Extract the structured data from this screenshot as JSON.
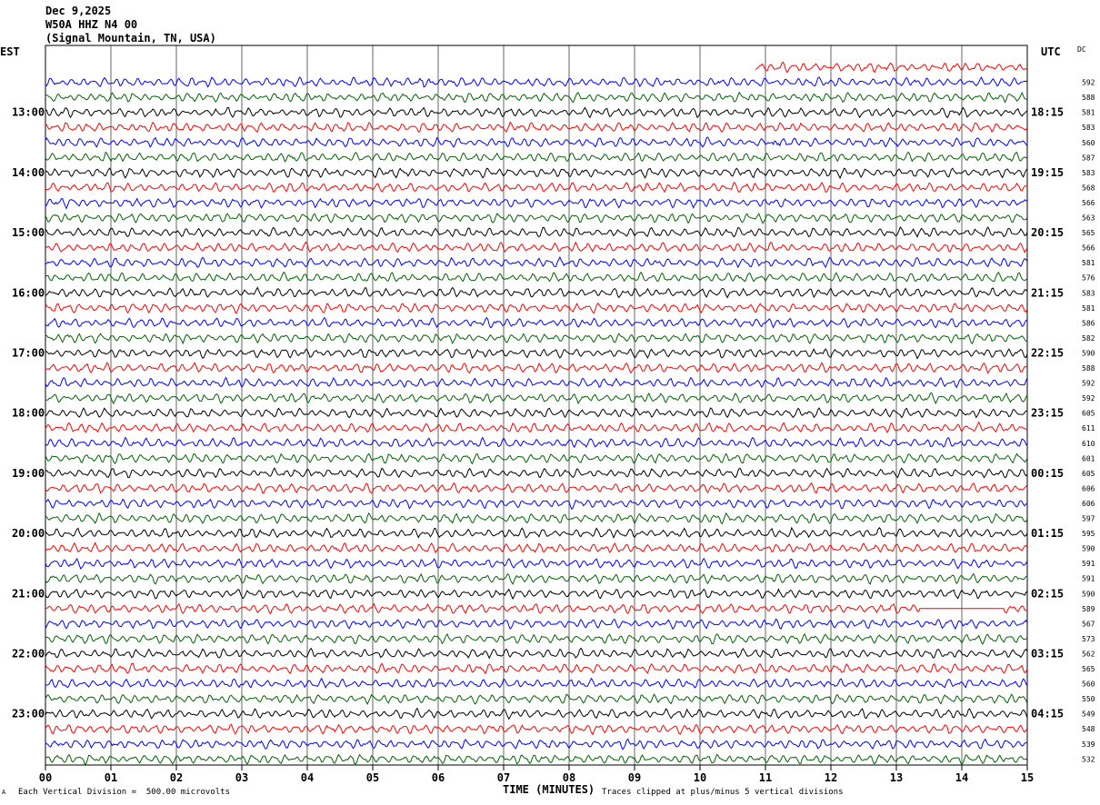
{
  "header": {
    "date": "Dec 9,2025",
    "station": "W50A HHZ N4 00",
    "location": "(Signal Mountain, TN, USA)"
  },
  "left_tz": "EST",
  "right_tz": "UTC",
  "dc_label": "DC",
  "footer": {
    "corner_mark": "A",
    "scale": "Each Vertical Division =  500.00 microvolts",
    "clip": "Traces clipped at plus/minus 5 vertical divisions"
  },
  "chart_data": {
    "type": "line",
    "title": "",
    "xlabel": "TIME (MINUTES)",
    "xlim": [
      0,
      15
    ],
    "x_ticks": [
      "00",
      "01",
      "02",
      "03",
      "04",
      "05",
      "06",
      "07",
      "08",
      "09",
      "10",
      "11",
      "12",
      "13",
      "14",
      "15"
    ],
    "trace_colors": [
      "#ff0000",
      "#0000ff",
      "#006400",
      "#000000"
    ],
    "left_hour_labels": [
      {
        "label": "13:00",
        "row": 3
      },
      {
        "label": "14:00",
        "row": 7
      },
      {
        "label": "15:00",
        "row": 11
      },
      {
        "label": "16:00",
        "row": 15
      },
      {
        "label": "17:00",
        "row": 19
      },
      {
        "label": "18:00",
        "row": 23
      },
      {
        "label": "19:00",
        "row": 27
      },
      {
        "label": "20:00",
        "row": 31
      },
      {
        "label": "21:00",
        "row": 35
      },
      {
        "label": "22:00",
        "row": 39
      },
      {
        "label": "23:00",
        "row": 43
      }
    ],
    "right_hour_labels": [
      {
        "label": "18:15",
        "row": 3
      },
      {
        "label": "19:15",
        "row": 7
      },
      {
        "label": "20:15",
        "row": 11
      },
      {
        "label": "21:15",
        "row": 15
      },
      {
        "label": "22:15",
        "row": 19
      },
      {
        "label": "23:15",
        "row": 23
      },
      {
        "label": "00:15",
        "row": 27
      },
      {
        "label": "01:15",
        "row": 31
      },
      {
        "label": "02:15",
        "row": 35
      },
      {
        "label": "03:15",
        "row": 39
      },
      {
        "label": "04:15",
        "row": 43
      }
    ],
    "dc_offsets": [
      "",
      "592",
      "588",
      "581",
      "583",
      "560",
      "587",
      "583",
      "568",
      "566",
      "563",
      "565",
      "566",
      "581",
      "576",
      "583",
      "581",
      "586",
      "582",
      "590",
      "588",
      "592",
      "592",
      "605",
      "611",
      "610",
      "601",
      "605",
      "606",
      "606",
      "597",
      "595",
      "590",
      "591",
      "591",
      "590",
      "589",
      "567",
      "573",
      "562",
      "565",
      "560",
      "550",
      "549",
      "548",
      "539",
      "532"
    ],
    "special_segments": {
      "first_trace_start_minute": 10.85,
      "quake_event": {
        "row": 5,
        "start_minute": 11.1,
        "end_minute": 11.6
      },
      "small_event": {
        "row": 1,
        "start_minute": 5.7,
        "end_minute": 5.95
      },
      "flat_gap": {
        "row": 36,
        "start_minute": 13.35,
        "end_minute": 14.65
      }
    }
  }
}
